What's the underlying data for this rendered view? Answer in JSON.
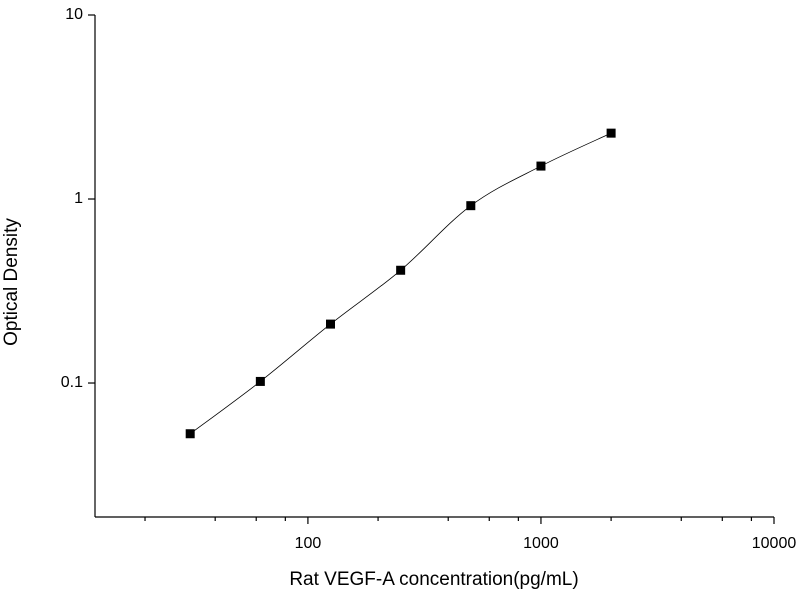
{
  "chart_data": {
    "type": "scatter",
    "x_label": "Rat VEGF-A concentration(pg/mL)",
    "y_label": "Optical Density",
    "xscale": "log",
    "yscale": "log",
    "x": [
      31.25,
      62.5,
      125,
      250,
      500,
      1000,
      2000
    ],
    "series": [
      {
        "color": "#000000",
        "values": [
          0.053,
          0.102,
          0.209,
          0.41,
          0.92,
          1.51,
          2.28
        ]
      }
    ],
    "xlim": [
      12.2,
      10000
    ],
    "ylim": [
      0.0187,
      10
    ],
    "xticks": [
      100,
      1000,
      10000
    ],
    "xminorticks": [
      20,
      40,
      60,
      80,
      200,
      400,
      600,
      800,
      2000,
      4000,
      6000,
      8000
    ],
    "yticks": [
      0.1,
      1,
      10
    ],
    "fit_curve": true
  }
}
